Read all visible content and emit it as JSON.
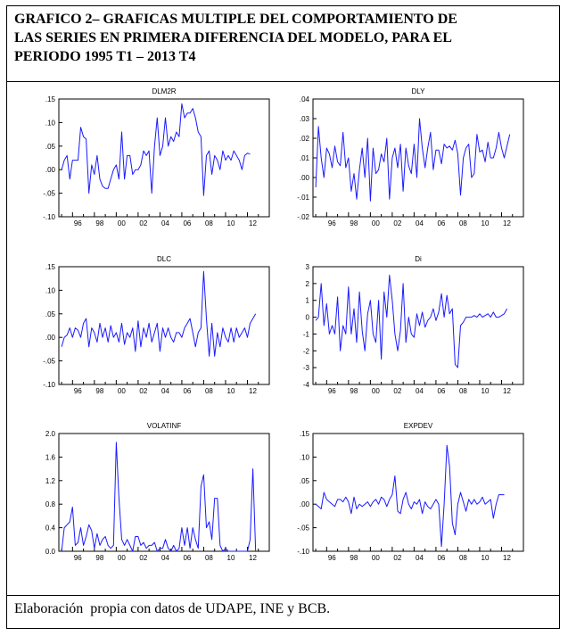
{
  "header": {
    "title_line1": "GRAFICO 2– GRAFICAS MULTIPLE DEL COMPORTAMIENTO DE",
    "title_line2": "LAS SERIES EN PRIMERA DIFERENCIA DEL MODELO, PARA EL",
    "title_line3": "PERIODO 1995 T1 – 2013 T4"
  },
  "footer": {
    "source": "Elaboración  propia con datos de UDAPE, INE y BCB."
  },
  "colors": {
    "line": "#1a1aff",
    "axis": "#000000",
    "text": "#000000"
  },
  "chart_data": [
    {
      "type": "line",
      "title": "DLM2R",
      "x_start": 1995.0,
      "x_step": 0.25,
      "xlim": [
        1994.75,
        2014.0
      ],
      "xticks": [
        1996,
        1998,
        2000,
        2002,
        2004,
        2006,
        2008,
        2010,
        2012
      ],
      "xtick_labels": [
        "96",
        "98",
        "00",
        "02",
        "04",
        "06",
        "08",
        "10",
        "12"
      ],
      "ylim": [
        -0.1,
        0.15
      ],
      "yticks": [
        -0.1,
        -0.05,
        0.0,
        0.05,
        0.1,
        0.15
      ],
      "ytick_labels": [
        "-.10",
        "-.05",
        ".00",
        ".05",
        ".10",
        ".15"
      ],
      "values": [
        0.0,
        0.02,
        0.03,
        -0.02,
        0.02,
        0.02,
        0.02,
        0.09,
        0.07,
        0.065,
        -0.05,
        0.01,
        -0.01,
        0.03,
        -0.02,
        -0.035,
        -0.04,
        -0.04,
        -0.02,
        0.0,
        0.01,
        -0.02,
        0.08,
        -0.02,
        0.03,
        0.03,
        -0.01,
        0.0,
        0.0,
        0.01,
        0.04,
        0.03,
        0.04,
        -0.05,
        0.05,
        0.11,
        0.03,
        0.05,
        0.11,
        0.05,
        0.07,
        0.06,
        0.08,
        0.07,
        0.14,
        0.11,
        0.12,
        0.12,
        0.13,
        0.11,
        0.08,
        0.07,
        -0.055,
        0.03,
        0.04,
        -0.01,
        0.03,
        0.02,
        0.0,
        0.04,
        0.02,
        0.03,
        0.02,
        0.04,
        0.03,
        0.02,
        0.0,
        0.03,
        0.035,
        0.033
      ]
    },
    {
      "type": "line",
      "title": "DLY",
      "x_start": 1995.0,
      "x_step": 0.25,
      "xlim": [
        1994.75,
        2014.0
      ],
      "xticks": [
        1996,
        1998,
        2000,
        2002,
        2004,
        2006,
        2008,
        2010,
        2012
      ],
      "xtick_labels": [
        "96",
        "98",
        "00",
        "02",
        "04",
        "06",
        "08",
        "10",
        "12"
      ],
      "ylim": [
        -0.02,
        0.04
      ],
      "yticks": [
        -0.02,
        -0.01,
        0.0,
        0.01,
        0.02,
        0.03,
        0.04
      ],
      "ytick_labels": [
        "-.02",
        "-.01",
        ".00",
        ".01",
        ".02",
        ".03",
        ".04"
      ],
      "values": [
        -0.005,
        0.026,
        0.01,
        0.0,
        0.015,
        0.012,
        0.005,
        0.016,
        0.008,
        0.006,
        0.023,
        0.005,
        0.01,
        -0.007,
        0.002,
        -0.011,
        0.004,
        0.015,
        0.0,
        0.02,
        -0.012,
        0.015,
        0.002,
        0.004,
        0.012,
        0.008,
        0.02,
        -0.011,
        0.01,
        0.015,
        0.005,
        0.017,
        -0.007,
        0.015,
        0.006,
        0.002,
        0.017,
        0.0,
        0.03,
        0.015,
        0.005,
        0.015,
        0.023,
        0.004,
        0.014,
        0.014,
        0.007,
        0.017,
        0.015,
        0.016,
        0.014,
        0.019,
        0.012,
        -0.009,
        0.01,
        0.015,
        0.017,
        0.0,
        0.002,
        0.022,
        0.013,
        0.014,
        0.008,
        0.018,
        0.01,
        0.01,
        0.015,
        0.023,
        0.015,
        0.01,
        0.016,
        0.022
      ]
    },
    {
      "type": "line",
      "title": "DLC",
      "x_start": 1995.0,
      "x_step": 0.25,
      "xlim": [
        1994.75,
        2014.0
      ],
      "xticks": [
        1996,
        1998,
        2000,
        2002,
        2004,
        2006,
        2008,
        2010,
        2012
      ],
      "xtick_labels": [
        "96",
        "98",
        "00",
        "02",
        "04",
        "06",
        "08",
        "10",
        "12"
      ],
      "ylim": [
        -0.1,
        0.15
      ],
      "yticks": [
        -0.1,
        -0.05,
        0.0,
        0.05,
        0.1,
        0.15
      ],
      "ytick_labels": [
        "-.10",
        "-.05",
        ".00",
        ".05",
        ".10",
        ".15"
      ],
      "values": [
        -0.02,
        0.0,
        0.005,
        0.02,
        0.0,
        0.02,
        0.015,
        0.0,
        0.03,
        0.04,
        -0.02,
        0.02,
        0.01,
        -0.01,
        0.03,
        0.0,
        0.02,
        -0.01,
        0.025,
        0.0,
        0.01,
        -0.01,
        0.03,
        -0.015,
        0.01,
        0.0,
        0.02,
        -0.03,
        0.035,
        -0.02,
        0.02,
        0.0,
        0.03,
        -0.01,
        0.01,
        0.03,
        -0.03,
        0.02,
        0.0,
        0.02,
        0.0,
        -0.01,
        0.01,
        0.01,
        0.0,
        0.02,
        0.03,
        0.04,
        0.01,
        -0.02,
        0.01,
        0.02,
        0.14,
        0.04,
        -0.04,
        0.03,
        -0.04,
        0.01,
        -0.02,
        0.02,
        0.0,
        -0.01,
        0.02,
        -0.01,
        0.02,
        0.0,
        0.01,
        0.02,
        0.0,
        0.03,
        0.04,
        0.05
      ]
    },
    {
      "type": "line",
      "title": "Di",
      "x_start": 1995.0,
      "x_step": 0.25,
      "xlim": [
        1994.75,
        2014.0
      ],
      "xticks": [
        1996,
        1998,
        2000,
        2002,
        2004,
        2006,
        2008,
        2010,
        2012
      ],
      "xtick_labels": [
        "96",
        "98",
        "00",
        "02",
        "04",
        "06",
        "08",
        "10",
        "12"
      ],
      "ylim": [
        -4,
        3
      ],
      "yticks": [
        -4,
        -3,
        -2,
        -1,
        0,
        1,
        2,
        3
      ],
      "ytick_labels": [
        "-4",
        "-3",
        "-2",
        "-1",
        "0",
        "1",
        "2",
        "3"
      ],
      "values": [
        -0.2,
        0.0,
        2.0,
        -0.5,
        0.8,
        -1.0,
        -0.5,
        -1.0,
        1.2,
        -2.0,
        -0.5,
        -1.0,
        1.8,
        -1.0,
        0.5,
        -1.5,
        1.5,
        -0.8,
        -2.0,
        0.2,
        1.0,
        -1.0,
        -1.5,
        1.0,
        -2.5,
        1.5,
        0.0,
        2.5,
        1.0,
        -1.0,
        -2.0,
        -0.8,
        2.0,
        -1.5,
        0.0,
        -1.0,
        -1.2,
        0.2,
        -0.5,
        0.3,
        -0.6,
        -0.2,
        0.0,
        0.5,
        -0.2,
        0.3,
        1.4,
        0.0,
        1.3,
        0.2,
        0.5,
        -2.8,
        -3.0,
        -0.5,
        -0.3,
        0.0,
        0.0,
        0.0,
        0.1,
        0.0,
        0.2,
        0.0,
        0.1,
        0.2,
        0.0,
        0.3,
        0.0,
        0.0,
        0.1,
        0.2,
        0.5
      ]
    },
    {
      "type": "line",
      "title": "VOLATINF",
      "x_start": 1995.0,
      "x_step": 0.25,
      "xlim": [
        1994.75,
        2014.0
      ],
      "xticks": [
        1996,
        1998,
        2000,
        2002,
        2004,
        2006,
        2008,
        2010,
        2012
      ],
      "xtick_labels": [
        "96",
        "98",
        "00",
        "02",
        "04",
        "06",
        "08",
        "10",
        "12"
      ],
      "ylim": [
        0.0,
        2.0
      ],
      "yticks": [
        0.0,
        0.4,
        0.8,
        1.2,
        1.6,
        2.0
      ],
      "ytick_labels": [
        "0.0",
        "0.4",
        "0.8",
        "1.2",
        "1.6",
        "2.0"
      ],
      "values": [
        0.0,
        0.4,
        0.45,
        0.5,
        0.75,
        0.1,
        0.15,
        0.4,
        0.1,
        0.25,
        0.45,
        0.35,
        0.05,
        0.3,
        0.1,
        0.2,
        0.25,
        0.1,
        0.05,
        0.1,
        1.85,
        0.9,
        0.2,
        0.1,
        0.2,
        0.1,
        0.0,
        0.25,
        0.25,
        0.1,
        0.15,
        0.05,
        0.1,
        0.1,
        0.15,
        0.0,
        0.05,
        0.05,
        0.2,
        0.05,
        0.0,
        0.1,
        0.0,
        0.05,
        0.4,
        0.1,
        0.4,
        0.05,
        0.4,
        0.2,
        0.05,
        1.1,
        1.3,
        0.4,
        0.5,
        0.2,
        0.9,
        0.9,
        0.1,
        0.0,
        0.05,
        0.0,
        0.0,
        0.0,
        0.0,
        0.0,
        0.0,
        0.0,
        0.0,
        0.2,
        1.4,
        0.0
      ]
    },
    {
      "type": "line",
      "title": "EXPDEV",
      "x_start": 1995.0,
      "x_step": 0.25,
      "xlim": [
        1994.75,
        2014.0
      ],
      "xticks": [
        1996,
        1998,
        2000,
        2002,
        2004,
        2006,
        2008,
        2010,
        2012
      ],
      "xtick_labels": [
        "96",
        "98",
        "00",
        "02",
        "04",
        "06",
        "08",
        "10",
        "12"
      ],
      "ylim": [
        -0.1,
        0.15
      ],
      "yticks": [
        -0.1,
        -0.05,
        0.0,
        0.05,
        0.1,
        0.15
      ],
      "ytick_labels": [
        "-.10",
        "-.05",
        ".00",
        ".05",
        ".10",
        ".15"
      ],
      "values": [
        0.0,
        -0.005,
        -0.01,
        0.025,
        0.01,
        0.005,
        0.0,
        -0.005,
        0.01,
        0.01,
        0.005,
        0.015,
        0.005,
        -0.02,
        0.015,
        -0.01,
        0.0,
        -0.005,
        0.0,
        0.005,
        -0.005,
        0.005,
        0.01,
        0.0,
        0.015,
        0.01,
        -0.005,
        0.01,
        0.02,
        0.06,
        -0.015,
        -0.02,
        0.01,
        0.025,
        0.0,
        -0.01,
        0.005,
        0.0,
        0.01,
        -0.02,
        0.005,
        -0.005,
        -0.01,
        0.0,
        0.01,
        0.0,
        -0.09,
        0.0,
        0.125,
        0.08,
        -0.04,
        -0.065,
        0.0,
        0.025,
        0.005,
        -0.015,
        0.01,
        0.0,
        0.01,
        0.0,
        0.005,
        0.015,
        0.0,
        0.005,
        0.01,
        -0.03,
        0.0,
        0.02,
        0.02,
        0.02
      ]
    }
  ]
}
